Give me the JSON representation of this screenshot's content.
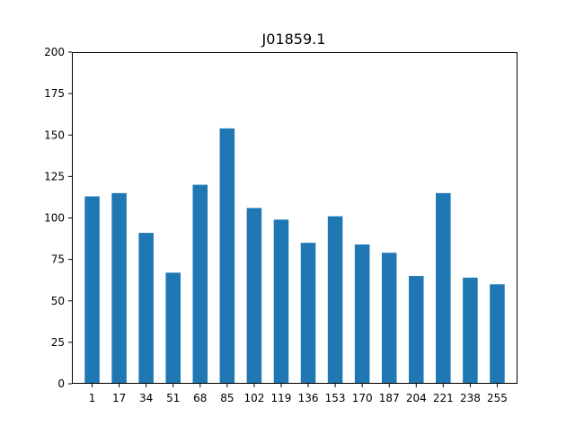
{
  "chart_data": {
    "type": "bar",
    "title": "J01859.1",
    "xlabel": "",
    "ylabel": "",
    "categories": [
      "1",
      "17",
      "34",
      "51",
      "68",
      "85",
      "102",
      "119",
      "136",
      "153",
      "170",
      "187",
      "204",
      "221",
      "238",
      "255"
    ],
    "values": [
      113,
      115,
      91,
      67,
      120,
      154,
      106,
      99,
      85,
      101,
      84,
      79,
      65,
      115,
      64,
      60
    ],
    "ylim": [
      0,
      200
    ],
    "yticks": [
      0,
      25,
      50,
      75,
      100,
      125,
      150,
      175,
      200
    ],
    "grid": false,
    "bar_color": "#1f77b4"
  }
}
